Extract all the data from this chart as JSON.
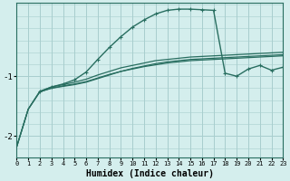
{
  "bg_color": "#d4eeed",
  "grid_color": "#a8cece",
  "line_color": "#286e60",
  "xlabel": "Humidex (Indice chaleur)",
  "xlabel_fontsize": 7,
  "yticks": [
    -2,
    -1
  ],
  "xticks": [
    0,
    1,
    2,
    3,
    4,
    5,
    6,
    7,
    8,
    9,
    10,
    11,
    12,
    13,
    14,
    15,
    16,
    17,
    18,
    19,
    20,
    21,
    22,
    23
  ],
  "xlim": [
    0,
    23
  ],
  "ylim": [
    -2.35,
    0.22
  ],
  "line_smooth_x": [
    0,
    1,
    2,
    3,
    4,
    5,
    6,
    7,
    8,
    9,
    10,
    11,
    12,
    13,
    14,
    15,
    16,
    17,
    18,
    19,
    20,
    21,
    22,
    23
  ],
  "line_smooth_y": [
    -2.18,
    -1.55,
    -1.25,
    -1.18,
    -1.14,
    -1.1,
    -1.05,
    -0.98,
    -0.92,
    -0.86,
    -0.82,
    -0.78,
    -0.74,
    -0.72,
    -0.7,
    -0.68,
    -0.67,
    -0.66,
    -0.65,
    -0.64,
    -0.63,
    -0.62,
    -0.61,
    -0.6
  ],
  "line_flat1_x": [
    0,
    1,
    2,
    3,
    4,
    5,
    6,
    7,
    8,
    9,
    10,
    11,
    12,
    13,
    14,
    15,
    16,
    17,
    18,
    19,
    20,
    21,
    22,
    23
  ],
  "line_flat1_y": [
    -2.18,
    -1.55,
    -1.26,
    -1.2,
    -1.16,
    -1.13,
    -1.09,
    -1.03,
    -0.97,
    -0.92,
    -0.88,
    -0.84,
    -0.81,
    -0.78,
    -0.76,
    -0.74,
    -0.73,
    -0.72,
    -0.71,
    -0.7,
    -0.69,
    -0.68,
    -0.67,
    -0.66
  ],
  "line_flat2_x": [
    0,
    1,
    2,
    3,
    4,
    5,
    6,
    7,
    8,
    9,
    10,
    11,
    12,
    13,
    14,
    15,
    16,
    17,
    18,
    19,
    20,
    21,
    22,
    23
  ],
  "line_flat2_y": [
    -2.18,
    -1.55,
    -1.26,
    -1.2,
    -1.17,
    -1.14,
    -1.1,
    -1.04,
    -0.98,
    -0.92,
    -0.87,
    -0.83,
    -0.79,
    -0.76,
    -0.74,
    -0.72,
    -0.71,
    -0.7,
    -0.69,
    -0.68,
    -0.67,
    -0.66,
    -0.65,
    -0.64
  ],
  "line_marked_x": [
    2,
    3,
    4,
    5,
    6,
    7,
    8,
    9,
    10,
    11,
    12,
    13,
    14,
    15,
    16,
    17,
    18,
    19,
    20,
    21,
    22,
    23
  ],
  "line_marked_y": [
    -1.26,
    -1.18,
    -1.13,
    -1.06,
    -0.93,
    -0.72,
    -0.52,
    -0.34,
    -0.18,
    -0.06,
    0.04,
    0.1,
    0.12,
    0.12,
    0.11,
    0.1,
    -0.95,
    -1.0,
    -0.88,
    -0.82,
    -0.9,
    -0.85
  ]
}
